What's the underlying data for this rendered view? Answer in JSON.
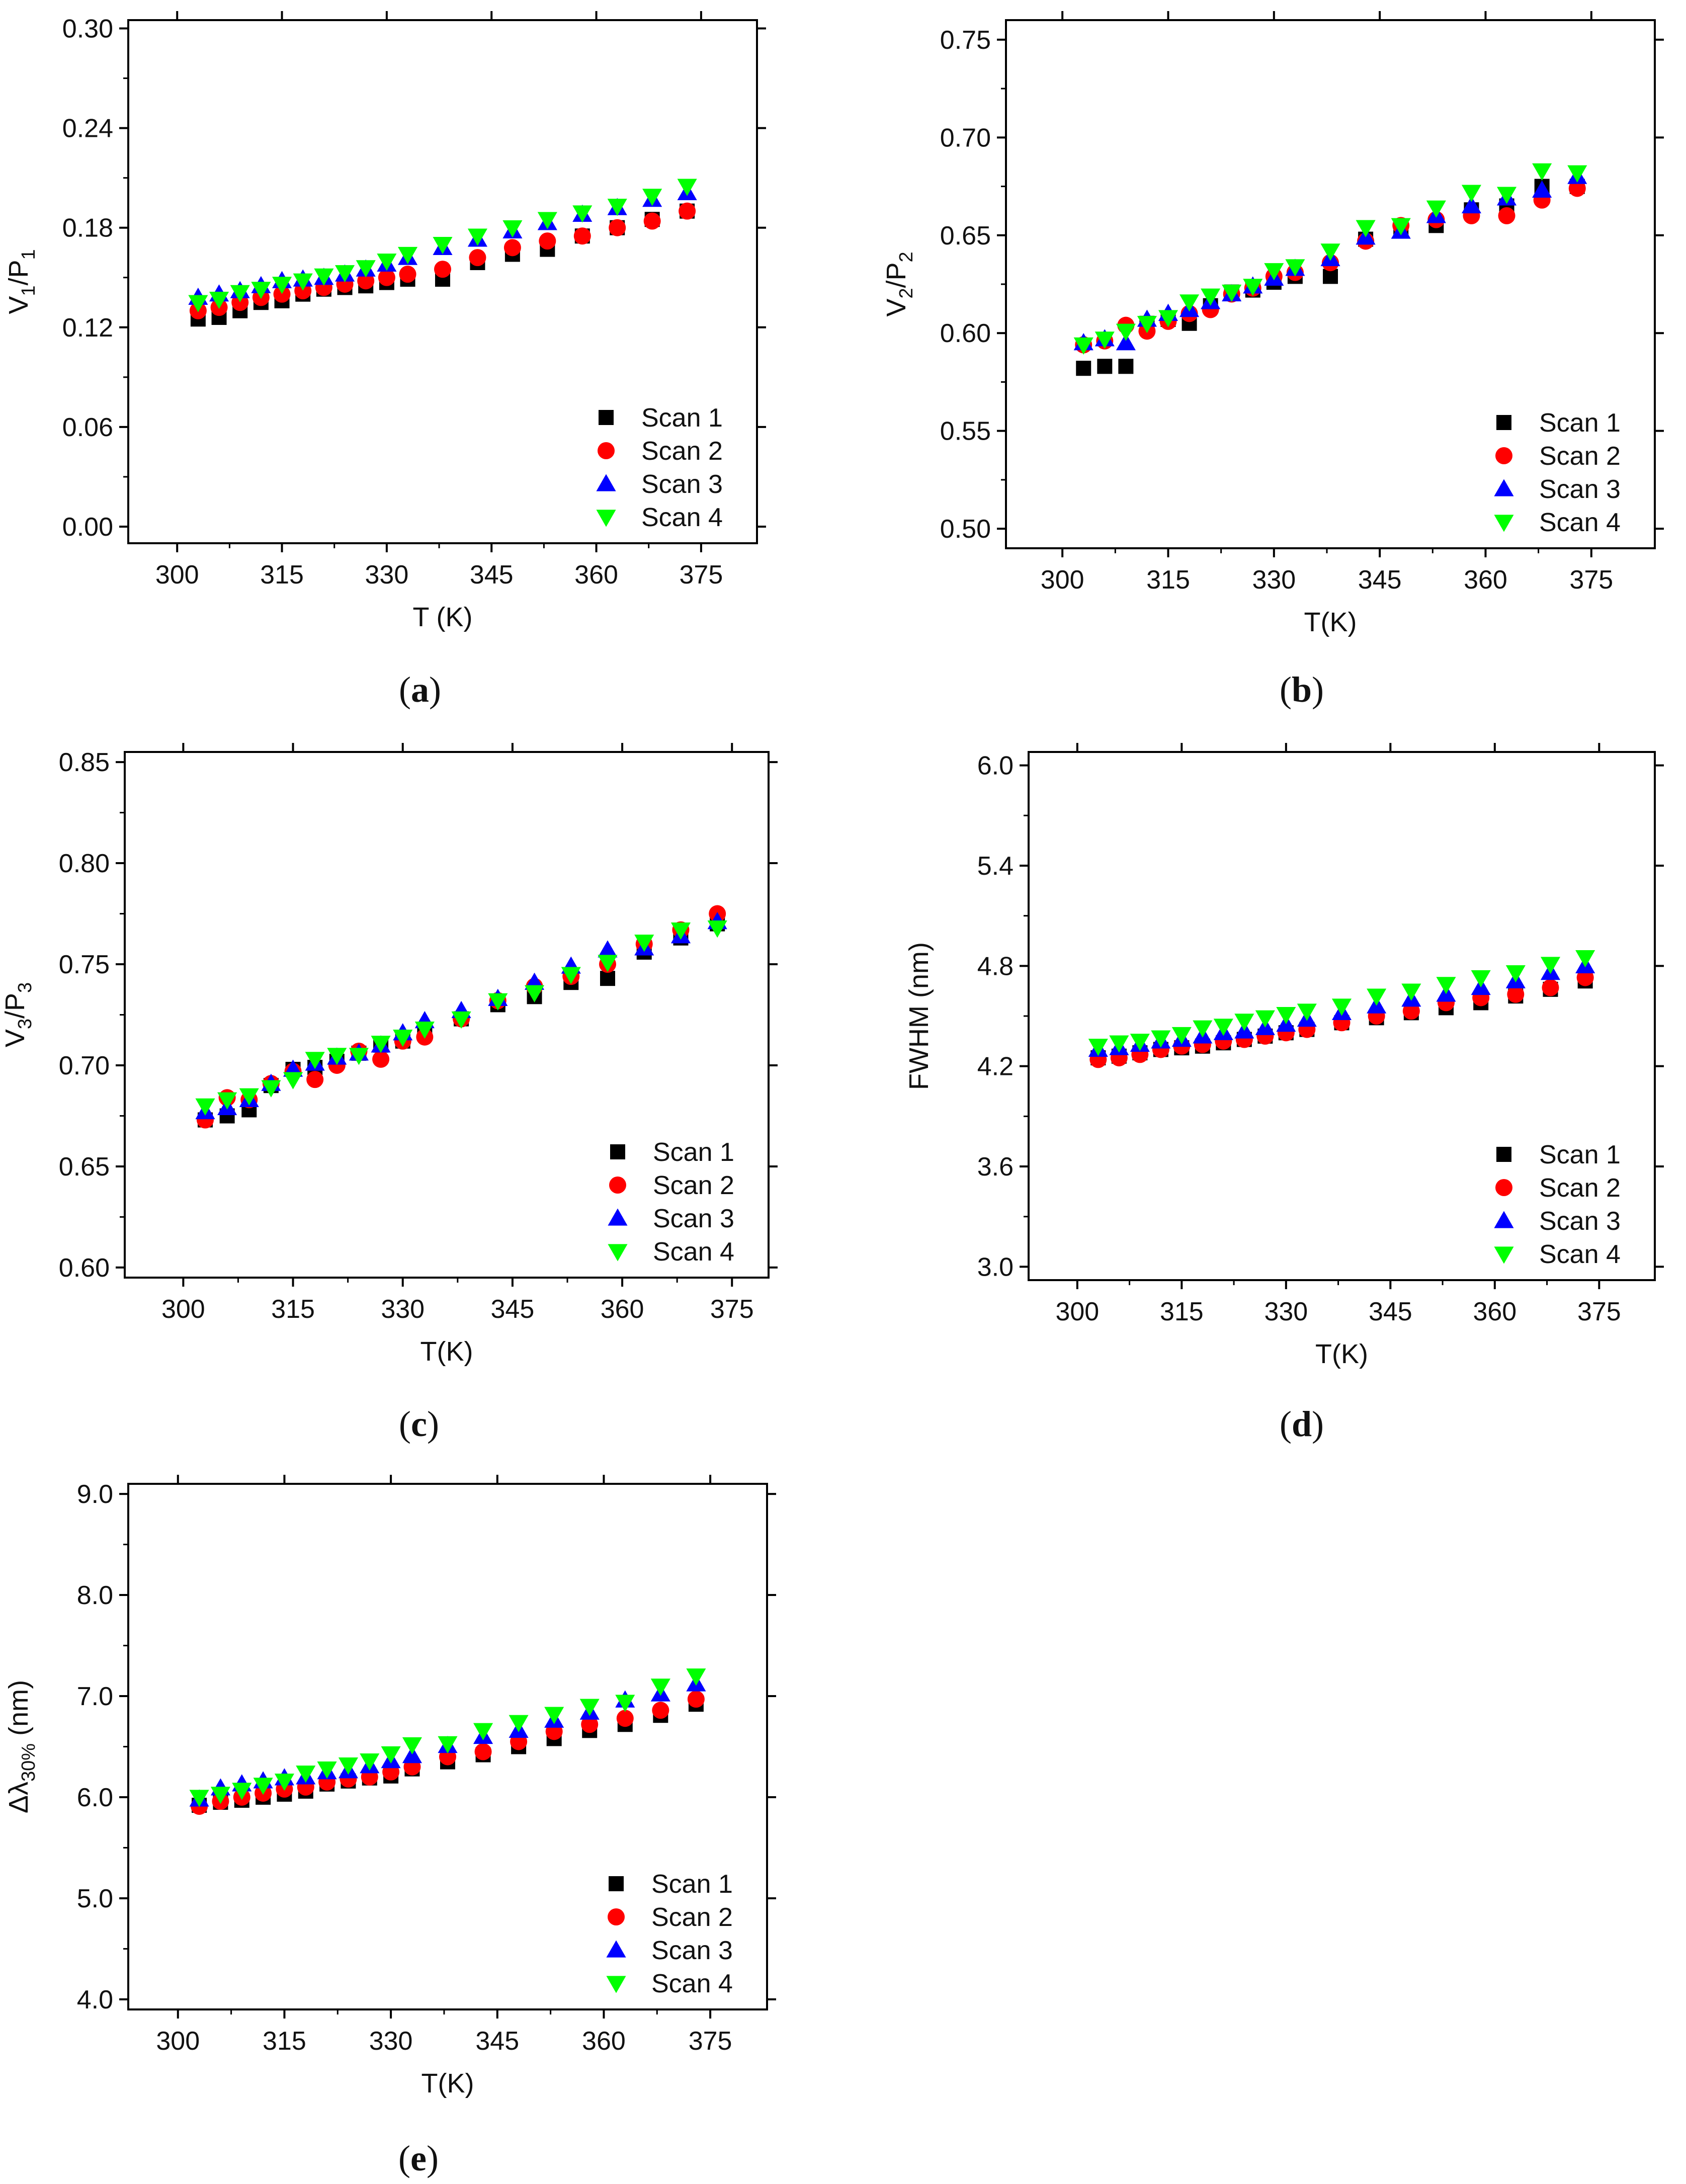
{
  "colors": {
    "scan1": "#000000",
    "scan2": "#ff0000",
    "scan3": "#0000ff",
    "scan4": "#00ff00"
  },
  "chart_data": [
    {
      "id": "a",
      "type": "scatter",
      "panel_label": "a",
      "xlabel": "T (K)",
      "ylabel": {
        "base": "V",
        "sub1": "1",
        "mid": "/P",
        "sub2": "1"
      },
      "xlim": [
        293,
        383
      ],
      "ylim": [
        -0.01,
        0.305
      ],
      "xticks": [
        300,
        315,
        330,
        345,
        360,
        375
      ],
      "yticks": [
        "0.00",
        "0.06",
        "0.12",
        "0.18",
        "0.24",
        "0.30"
      ],
      "ytick_values": [
        0.0,
        0.06,
        0.12,
        0.18,
        0.24,
        0.3
      ],
      "legend": [
        "Scan 1",
        "Scan 2",
        "Scan 3",
        "Scan 4"
      ],
      "legend_position": "bottom-right",
      "x": [
        303,
        306,
        309,
        312,
        315,
        318,
        321,
        324,
        327,
        330,
        333,
        338,
        343,
        348,
        353,
        358,
        363,
        368,
        373
      ],
      "series": [
        {
          "name": "Scan 1",
          "values": [
            0.125,
            0.126,
            0.13,
            0.135,
            0.136,
            0.14,
            0.143,
            0.144,
            0.145,
            0.147,
            0.149,
            0.149,
            0.159,
            0.164,
            0.167,
            0.175,
            0.18,
            0.185,
            0.19
          ]
        },
        {
          "name": "Scan 2",
          "values": [
            0.13,
            0.132,
            0.135,
            0.138,
            0.14,
            0.142,
            0.144,
            0.146,
            0.148,
            0.15,
            0.152,
            0.155,
            0.162,
            0.168,
            0.172,
            0.175,
            0.18,
            0.184,
            0.19
          ]
        },
        {
          "name": "Scan 3",
          "values": [
            0.138,
            0.14,
            0.142,
            0.145,
            0.148,
            0.149,
            0.15,
            0.152,
            0.155,
            0.158,
            0.162,
            0.168,
            0.173,
            0.178,
            0.183,
            0.188,
            0.192,
            0.197,
            0.201
          ]
        },
        {
          "name": "Scan 4",
          "values": [
            0.135,
            0.137,
            0.141,
            0.143,
            0.146,
            0.148,
            0.151,
            0.153,
            0.156,
            0.16,
            0.164,
            0.17,
            0.175,
            0.18,
            0.185,
            0.189,
            0.193,
            0.199,
            0.205
          ]
        }
      ]
    },
    {
      "id": "b",
      "type": "scatter",
      "panel_label": "b",
      "xlabel": "T(K)",
      "ylabel": {
        "base": "V",
        "sub1": "2",
        "mid": "/P",
        "sub2": "2"
      },
      "xlim": [
        292,
        384
      ],
      "ylim": [
        0.49,
        0.76
      ],
      "xticks": [
        300,
        315,
        330,
        345,
        360,
        375
      ],
      "yticks": [
        "0.50",
        "0.55",
        "0.60",
        "0.65",
        "0.70",
        "0.75"
      ],
      "ytick_values": [
        0.5,
        0.55,
        0.6,
        0.65,
        0.7,
        0.75
      ],
      "legend": [
        "Scan 1",
        "Scan 2",
        "Scan 3",
        "Scan 4"
      ],
      "legend_position": "bottom-right",
      "x": [
        303,
        306,
        309,
        312,
        315,
        318,
        321,
        324,
        327,
        330,
        333,
        338,
        343,
        348,
        353,
        358,
        363,
        368,
        373
      ],
      "series": [
        {
          "name": "Scan 1",
          "values": [
            0.582,
            0.583,
            0.583,
            0.605,
            0.607,
            0.605,
            0.614,
            0.621,
            0.622,
            0.626,
            0.629,
            0.629,
            0.648,
            0.653,
            0.655,
            0.663,
            0.665,
            0.675,
            0.675
          ]
        },
        {
          "name": "Scan 2",
          "values": [
            0.594,
            0.596,
            0.604,
            0.601,
            0.606,
            0.61,
            0.612,
            0.62,
            0.623,
            0.629,
            0.631,
            0.636,
            0.647,
            0.655,
            0.658,
            0.66,
            0.66,
            0.668,
            0.674
          ]
        },
        {
          "name": "Scan 3",
          "values": [
            0.595,
            0.597,
            0.595,
            0.607,
            0.61,
            0.612,
            0.616,
            0.62,
            0.624,
            0.628,
            0.633,
            0.638,
            0.649,
            0.652,
            0.66,
            0.665,
            0.669,
            0.673,
            0.68
          ]
        },
        {
          "name": "Scan 4",
          "values": [
            0.594,
            0.597,
            0.601,
            0.605,
            0.608,
            0.616,
            0.619,
            0.621,
            0.624,
            0.632,
            0.634,
            0.642,
            0.654,
            0.655,
            0.664,
            0.672,
            0.671,
            0.683,
            0.682
          ]
        }
      ]
    },
    {
      "id": "c",
      "type": "scatter",
      "panel_label": "c",
      "xlabel": "T(K)",
      "ylabel": {
        "base": "V",
        "sub1": "3",
        "mid": "/P",
        "sub2": "3"
      },
      "xlim": [
        292,
        380
      ],
      "ylim": [
        0.595,
        0.855
      ],
      "xticks": [
        300,
        315,
        330,
        345,
        360,
        375
      ],
      "yticks": [
        "0.60",
        "0.65",
        "0.70",
        "0.75",
        "0.80",
        "0.85"
      ],
      "ytick_values": [
        0.6,
        0.65,
        0.7,
        0.75,
        0.8,
        0.85
      ],
      "legend": [
        "Scan 1",
        "Scan 2",
        "Scan 3",
        "Scan 4"
      ],
      "legend_position": "bottom-right",
      "x": [
        303,
        306,
        309,
        312,
        315,
        318,
        321,
        324,
        327,
        330,
        333,
        338,
        343,
        348,
        353,
        358,
        363,
        368,
        373
      ],
      "series": [
        {
          "name": "Scan 1",
          "values": [
            0.673,
            0.675,
            0.678,
            0.69,
            0.698,
            0.699,
            0.702,
            0.706,
            0.71,
            0.712,
            0.716,
            0.723,
            0.73,
            0.734,
            0.741,
            0.743,
            0.756,
            0.763,
            0.77
          ]
        },
        {
          "name": "Scan 2",
          "values": [
            0.673,
            0.684,
            0.683,
            0.691,
            0.697,
            0.693,
            0.7,
            0.707,
            0.703,
            0.712,
            0.714,
            0.723,
            0.732,
            0.739,
            0.744,
            0.75,
            0.76,
            0.767,
            0.775
          ]
        },
        {
          "name": "Scan 3",
          "values": [
            0.677,
            0.679,
            0.683,
            0.691,
            0.698,
            0.701,
            0.704,
            0.706,
            0.71,
            0.716,
            0.722,
            0.727,
            0.733,
            0.741,
            0.749,
            0.757,
            0.758,
            0.764,
            0.771
          ]
        },
        {
          "name": "Scan 4",
          "values": [
            0.68,
            0.683,
            0.685,
            0.689,
            0.693,
            0.703,
            0.705,
            0.705,
            0.711,
            0.714,
            0.718,
            0.723,
            0.732,
            0.736,
            0.745,
            0.751,
            0.761,
            0.767,
            0.768
          ]
        }
      ]
    },
    {
      "id": "d",
      "type": "scatter",
      "panel_label": "d",
      "xlabel": "T(K)",
      "ylabel": {
        "base": "FWHM (nm)"
      },
      "xlim": [
        293,
        383
      ],
      "ylim": [
        2.92,
        6.08
      ],
      "xticks": [
        300,
        315,
        330,
        345,
        360,
        375
      ],
      "yticks": [
        "3.0",
        "3.6",
        "4.2",
        "4.8",
        "5.4",
        "6.0"
      ],
      "ytick_values": [
        3.0,
        3.6,
        4.2,
        4.8,
        5.4,
        6.0
      ],
      "legend": [
        "Scan 1",
        "Scan 2",
        "Scan 3",
        "Scan 4"
      ],
      "legend_position": "bottom-right",
      "x": [
        303,
        306,
        309,
        312,
        315,
        318,
        321,
        324,
        327,
        330,
        333,
        338,
        343,
        348,
        353,
        358,
        363,
        368,
        373
      ],
      "series": [
        {
          "name": "Scan 1",
          "values": [
            4.25,
            4.26,
            4.28,
            4.3,
            4.31,
            4.32,
            4.34,
            4.36,
            4.38,
            4.4,
            4.42,
            4.46,
            4.49,
            4.52,
            4.55,
            4.58,
            4.62,
            4.66,
            4.71
          ]
        },
        {
          "name": "Scan 2",
          "values": [
            4.24,
            4.25,
            4.27,
            4.3,
            4.32,
            4.33,
            4.35,
            4.36,
            4.38,
            4.4,
            4.42,
            4.46,
            4.5,
            4.53,
            4.58,
            4.61,
            4.63,
            4.67,
            4.73
          ]
        },
        {
          "name": "Scan 3",
          "values": [
            4.3,
            4.31,
            4.33,
            4.35,
            4.36,
            4.38,
            4.4,
            4.41,
            4.43,
            4.45,
            4.48,
            4.52,
            4.56,
            4.6,
            4.63,
            4.67,
            4.71,
            4.76,
            4.8
          ]
        },
        {
          "name": "Scan 4",
          "values": [
            4.32,
            4.34,
            4.35,
            4.37,
            4.39,
            4.43,
            4.44,
            4.47,
            4.49,
            4.51,
            4.53,
            4.56,
            4.62,
            4.65,
            4.69,
            4.73,
            4.76,
            4.81,
            4.85
          ]
        }
      ]
    },
    {
      "id": "e",
      "type": "scatter",
      "panel_label": "e",
      "xlabel": "T(K)",
      "ylabel": {
        "base": "Δλ",
        "sub1": "30%",
        "mid": " (nm)",
        "sub2": ""
      },
      "xlim": [
        293,
        383
      ],
      "ylim": [
        3.9,
        9.1
      ],
      "xticks": [
        300,
        315,
        330,
        345,
        360,
        375
      ],
      "yticks": [
        "4.0",
        "5.0",
        "6.0",
        "7.0",
        "8.0",
        "9.0"
      ],
      "ytick_values": [
        4.0,
        5.0,
        6.0,
        7.0,
        8.0,
        9.0
      ],
      "legend": [
        "Scan 1",
        "Scan 2",
        "Scan 3",
        "Scan 4"
      ],
      "legend_position": "bottom-right",
      "x": [
        303,
        306,
        309,
        312,
        315,
        318,
        321,
        324,
        327,
        330,
        333,
        338,
        343,
        348,
        353,
        358,
        363,
        368,
        373
      ],
      "series": [
        {
          "name": "Scan 1",
          "values": [
            5.92,
            5.95,
            5.97,
            6.0,
            6.03,
            6.06,
            6.13,
            6.16,
            6.19,
            6.21,
            6.28,
            6.35,
            6.42,
            6.5,
            6.58,
            6.66,
            6.72,
            6.81,
            6.92
          ]
        },
        {
          "name": "Scan 2",
          "values": [
            5.91,
            5.96,
            6.0,
            6.04,
            6.08,
            6.1,
            6.15,
            6.18,
            6.2,
            6.25,
            6.3,
            6.4,
            6.45,
            6.55,
            6.65,
            6.72,
            6.78,
            6.86,
            6.97
          ]
        },
        {
          "name": "Scan 3",
          "values": [
            5.98,
            6.09,
            6.13,
            6.16,
            6.19,
            6.2,
            6.25,
            6.26,
            6.31,
            6.36,
            6.41,
            6.51,
            6.6,
            6.66,
            6.76,
            6.84,
            6.96,
            7.02,
            7.12
          ]
        },
        {
          "name": "Scan 4",
          "values": [
            6.0,
            6.03,
            6.07,
            6.12,
            6.16,
            6.24,
            6.28,
            6.32,
            6.36,
            6.43,
            6.52,
            6.53,
            6.66,
            6.74,
            6.82,
            6.9,
            6.94,
            7.1,
            7.2
          ]
        }
      ]
    }
  ]
}
